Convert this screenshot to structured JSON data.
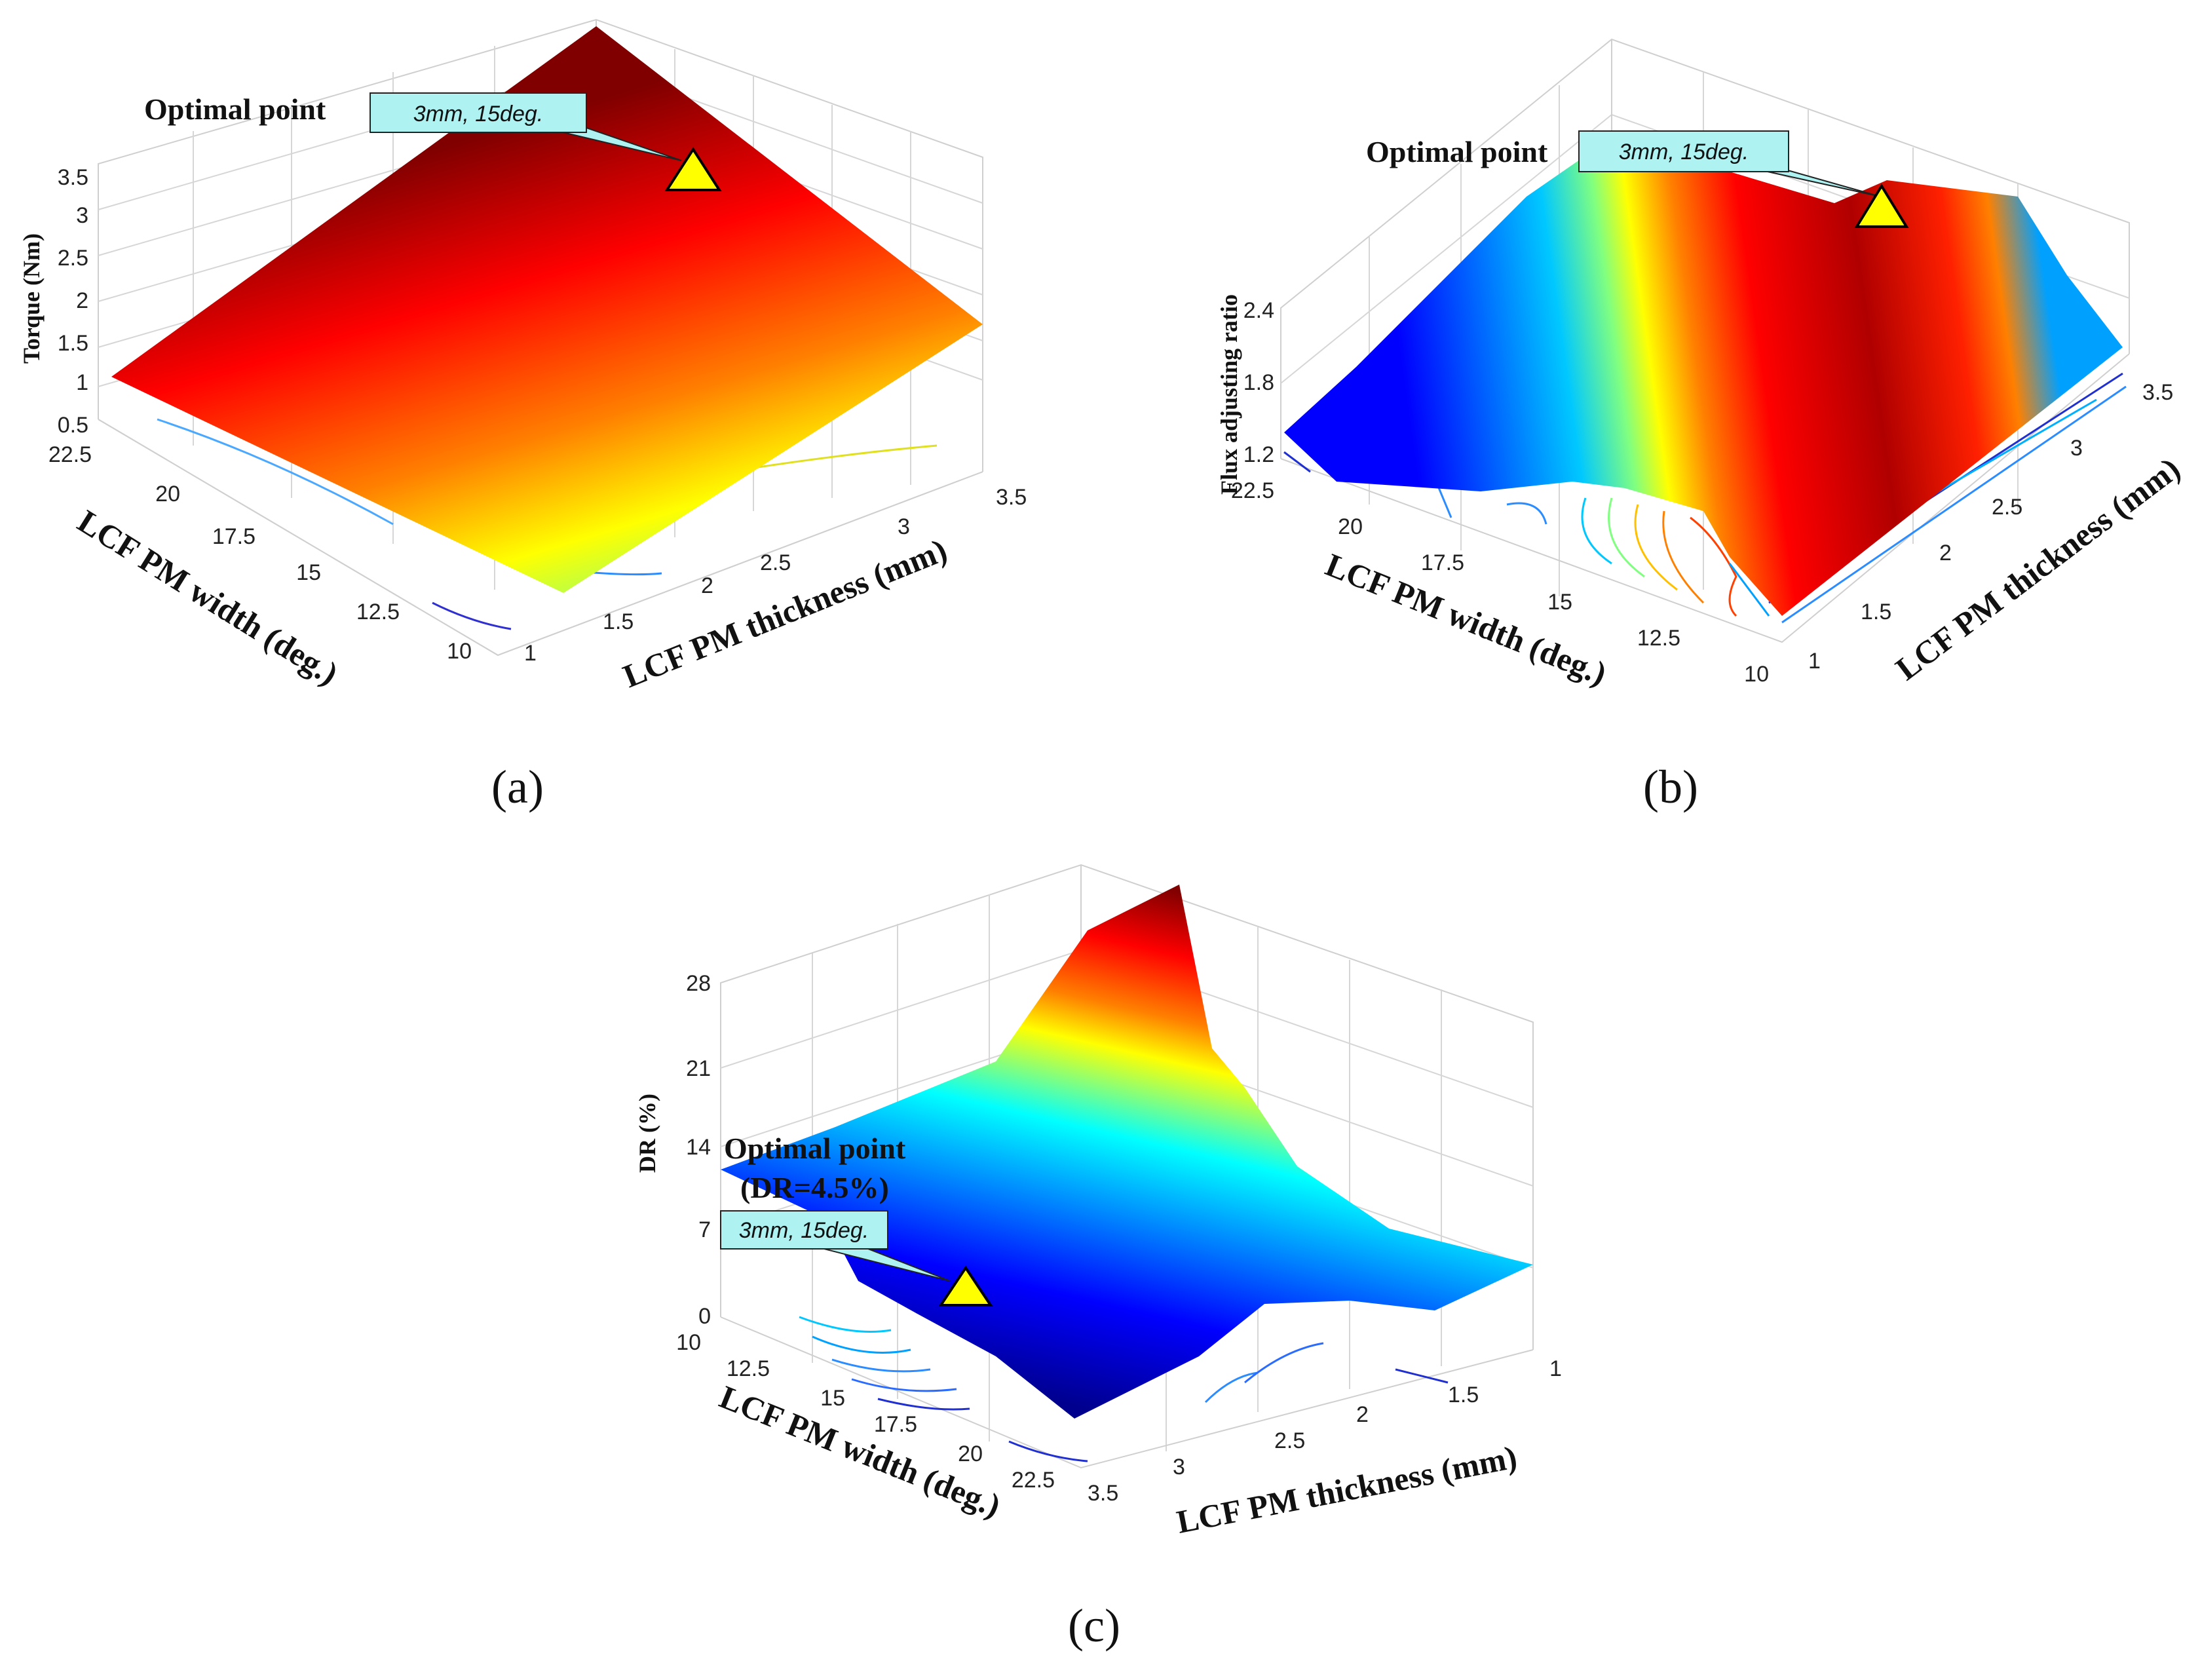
{
  "colors": {
    "jet": [
      "#00008f",
      "#0000ff",
      "#0080ff",
      "#00ffff",
      "#80ff80",
      "#ffff00",
      "#ff8000",
      "#ff0000",
      "#800000"
    ],
    "callout_fill": "#aef2f2",
    "marker_fill": "#ffff00"
  },
  "chart_data": [
    {
      "panel": "(a)",
      "type": "surface3d",
      "zlabel": "Torque (Nm)",
      "xlabel": "LCF PM width (deg.)",
      "ylabel": "LCF PM thickness (mm)",
      "x_ticks": [
        "22.5",
        "20",
        "17.5",
        "15",
        "12.5",
        "10"
      ],
      "y_ticks": [
        "1",
        "1.5",
        "2",
        "2.5",
        "3",
        "3.5"
      ],
      "z_ticks": [
        "0.5",
        "1",
        "1.5",
        "2",
        "2.5",
        "3",
        "3.5"
      ],
      "zlim": [
        0.5,
        3.5
      ],
      "corner_values": {
        "w22.5_t1": 1.2,
        "w10_t1": 0.8,
        "w22.5_t3.5": 3.5,
        "w10_t3.5": 1.75
      },
      "optimal": {
        "label": "Optimal point",
        "callout": "3mm, 15deg.",
        "thickness_mm": 3,
        "width_deg": 15
      }
    },
    {
      "panel": "(b)",
      "type": "surface3d",
      "zlabel": "Flux adjusting ratio",
      "xlabel": "LCF PM width (deg.)",
      "ylabel": "LCF PM thickness (mm)",
      "x_ticks": [
        "22.5",
        "20",
        "17.5",
        "15",
        "12.5",
        "10"
      ],
      "y_ticks": [
        "1",
        "1.5",
        "2",
        "2.5",
        "3",
        "3.5"
      ],
      "z_ticks": [
        "1.2",
        "1.8",
        "2.4"
      ],
      "zlim": [
        1.2,
        2.4
      ],
      "optimal": {
        "label": "Optimal point",
        "callout": "3mm, 15deg.",
        "thickness_mm": 3,
        "width_deg": 15
      }
    },
    {
      "panel": "(c)",
      "type": "surface3d",
      "zlabel": "DR (%)",
      "xlabel": "LCF PM width (deg.)",
      "ylabel": "LCF PM thickness (mm)",
      "x_ticks": [
        "10",
        "12.5",
        "15",
        "17.5",
        "20",
        "22.5"
      ],
      "y_ticks": [
        "3.5",
        "3",
        "2.5",
        "2",
        "1.5",
        "1"
      ],
      "z_ticks": [
        "0",
        "7",
        "14",
        "21",
        "28"
      ],
      "zlim": [
        0,
        28
      ],
      "optimal": {
        "label": "Optimal point",
        "sublabel": "(DR=4.5%)",
        "callout": "3mm, 15deg.",
        "thickness_mm": 3,
        "width_deg": 15,
        "DR_percent": 4.5
      }
    }
  ]
}
